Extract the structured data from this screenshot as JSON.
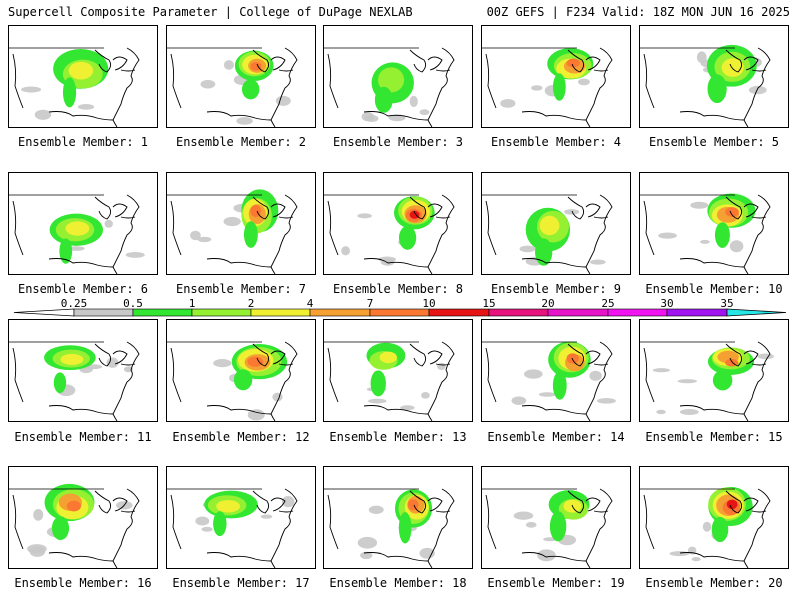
{
  "header": {
    "left": "Supercell Composite Parameter | College of DuPage NEXLAB",
    "right": "00Z GEFS | F234 Valid: 18Z MON JUN 16 2025"
  },
  "legend": {
    "ticks": [
      "0.25",
      "0.5",
      "1",
      "2",
      "4",
      "7",
      "10",
      "15",
      "20",
      "25",
      "30",
      "35"
    ],
    "colors": [
      "#c8c8c8",
      "#32e632",
      "#96f032",
      "#f0f032",
      "#f5a032",
      "#fa7832",
      "#e61414",
      "#e6147d",
      "#e614c8",
      "#f014f0",
      "#a014f0",
      "#c864dc",
      "#28e6e6"
    ]
  },
  "members": [
    {
      "label": "Ensemble Member: 1",
      "intensity": "moderate",
      "focus": "north-central plains"
    },
    {
      "label": "Ensemble Member: 2",
      "intensity": "high",
      "focus": "upper midwest"
    },
    {
      "label": "Ensemble Member: 3",
      "intensity": "low",
      "focus": "central plains"
    },
    {
      "label": "Ensemble Member: 4",
      "intensity": "high",
      "focus": "upper midwest"
    },
    {
      "label": "Ensemble Member: 5",
      "intensity": "moderate",
      "focus": "upper midwest"
    },
    {
      "label": "Ensemble Member: 6",
      "intensity": "moderate",
      "focus": "central plains"
    },
    {
      "label": "Ensemble Member: 7",
      "intensity": "high",
      "focus": "upper midwest"
    },
    {
      "label": "Ensemble Member: 8",
      "intensity": "very high",
      "focus": "upper midwest"
    },
    {
      "label": "Ensemble Member: 9",
      "intensity": "moderate",
      "focus": "central plains"
    },
    {
      "label": "Ensemble Member: 10",
      "intensity": "high",
      "focus": "upper midwest"
    },
    {
      "label": "Ensemble Member: 11",
      "intensity": "moderate",
      "focus": "northern plains"
    },
    {
      "label": "Ensemble Member: 12",
      "intensity": "high",
      "focus": "upper midwest"
    },
    {
      "label": "Ensemble Member: 13",
      "intensity": "moderate",
      "focus": "northern plains"
    },
    {
      "label": "Ensemble Member: 14",
      "intensity": "high",
      "focus": "upper midwest"
    },
    {
      "label": "Ensemble Member: 15",
      "intensity": "high",
      "focus": "upper midwest"
    },
    {
      "label": "Ensemble Member: 16",
      "intensity": "high",
      "focus": "northern plains"
    },
    {
      "label": "Ensemble Member: 17",
      "intensity": "moderate",
      "focus": "northern plains"
    },
    {
      "label": "Ensemble Member: 18",
      "intensity": "high",
      "focus": "upper midwest"
    },
    {
      "label": "Ensemble Member: 19",
      "intensity": "moderate",
      "focus": "upper midwest"
    },
    {
      "label": "Ensemble Member: 20",
      "intensity": "very high",
      "focus": "upper midwest"
    }
  ]
}
